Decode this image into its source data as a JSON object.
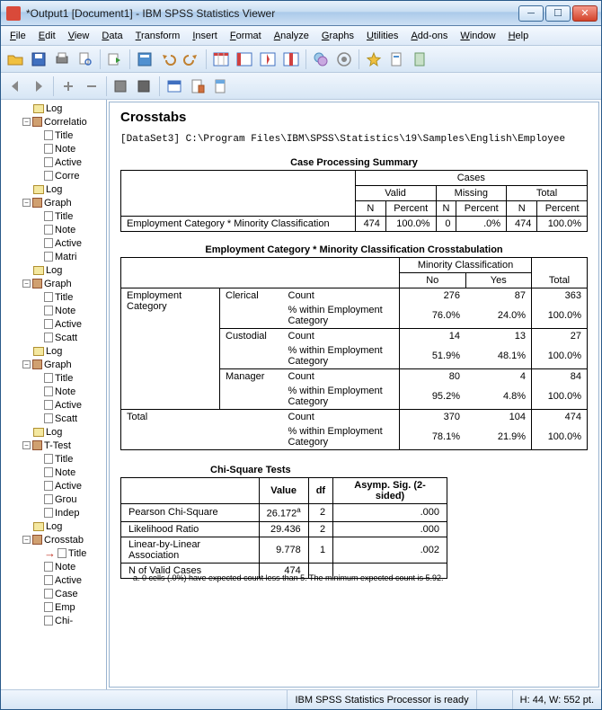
{
  "window": {
    "title": "*Output1 [Document1] - IBM SPSS Statistics Viewer"
  },
  "menu": [
    "File",
    "Edit",
    "View",
    "Data",
    "Transform",
    "Insert",
    "Format",
    "Analyze",
    "Graphs",
    "Utilities",
    "Add-ons",
    "Window",
    "Help"
  ],
  "tree": [
    {
      "icon": "log",
      "label": "Log",
      "indent": 36
    },
    {
      "icon": "book",
      "label": "Correlatio",
      "indent": 24,
      "toggle": "-"
    },
    {
      "icon": "page",
      "label": "Title",
      "indent": 48
    },
    {
      "icon": "page",
      "label": "Note",
      "indent": 48
    },
    {
      "icon": "page",
      "label": "Active",
      "indent": 48
    },
    {
      "icon": "page",
      "label": "Corre",
      "indent": 48
    },
    {
      "icon": "log",
      "label": "Log",
      "indent": 36
    },
    {
      "icon": "book",
      "label": "Graph",
      "indent": 24,
      "toggle": "-"
    },
    {
      "icon": "page",
      "label": "Title",
      "indent": 48
    },
    {
      "icon": "page",
      "label": "Note",
      "indent": 48
    },
    {
      "icon": "page",
      "label": "Active",
      "indent": 48
    },
    {
      "icon": "page",
      "label": "Matri",
      "indent": 48
    },
    {
      "icon": "log",
      "label": "Log",
      "indent": 36
    },
    {
      "icon": "book",
      "label": "Graph",
      "indent": 24,
      "toggle": "-"
    },
    {
      "icon": "page",
      "label": "Title",
      "indent": 48
    },
    {
      "icon": "page",
      "label": "Note",
      "indent": 48
    },
    {
      "icon": "page",
      "label": "Active",
      "indent": 48
    },
    {
      "icon": "page",
      "label": "Scatt",
      "indent": 48
    },
    {
      "icon": "log",
      "label": "Log",
      "indent": 36
    },
    {
      "icon": "book",
      "label": "Graph",
      "indent": 24,
      "toggle": "-"
    },
    {
      "icon": "page",
      "label": "Title",
      "indent": 48
    },
    {
      "icon": "page",
      "label": "Note",
      "indent": 48
    },
    {
      "icon": "page",
      "label": "Active",
      "indent": 48
    },
    {
      "icon": "page",
      "label": "Scatt",
      "indent": 48
    },
    {
      "icon": "log",
      "label": "Log",
      "indent": 36
    },
    {
      "icon": "book",
      "label": "T-Test",
      "indent": 24,
      "toggle": "-"
    },
    {
      "icon": "page",
      "label": "Title",
      "indent": 48
    },
    {
      "icon": "page",
      "label": "Note",
      "indent": 48
    },
    {
      "icon": "page",
      "label": "Active",
      "indent": 48
    },
    {
      "icon": "page",
      "label": "Grou",
      "indent": 48
    },
    {
      "icon": "page",
      "label": "Indep",
      "indent": 48
    },
    {
      "icon": "log",
      "label": "Log",
      "indent": 36
    },
    {
      "icon": "book",
      "label": "Crosstab",
      "indent": 24,
      "toggle": "-"
    },
    {
      "icon": "page",
      "label": "Title",
      "indent": 48,
      "pointer": true
    },
    {
      "icon": "page",
      "label": "Note",
      "indent": 48
    },
    {
      "icon": "page",
      "label": "Active",
      "indent": 48
    },
    {
      "icon": "page",
      "label": "Case",
      "indent": 48
    },
    {
      "icon": "page",
      "label": "Emp",
      "indent": 48
    },
    {
      "icon": "page",
      "label": "Chi-",
      "indent": 48
    }
  ],
  "content": {
    "heading": "Crosstabs",
    "dataset_path": "[DataSet3] C:\\Program Files\\IBM\\SPSS\\Statistics\\19\\Samples\\English\\Employee",
    "case_summary": {
      "title": "Case Processing Summary",
      "top_header": "Cases",
      "groups": [
        "Valid",
        "Missing",
        "Total"
      ],
      "sub_headers": [
        "N",
        "Percent"
      ],
      "row_label": "Employment Category * Minority Classification",
      "valid_n": "474",
      "valid_pct": "100.0%",
      "missing_n": "0",
      "missing_pct": ".0%",
      "total_n": "474",
      "total_pct": "100.0%"
    },
    "crosstab": {
      "title": "Employment Category * Minority Classification Crosstabulation",
      "col_group": "Minority Classification",
      "cols": [
        "No",
        "Yes"
      ],
      "total_label": "Total",
      "row_var": "Employment Category",
      "count_label": "Count",
      "pct_label": "% within Employment Category",
      "rows": [
        {
          "label": "Clerical",
          "count": [
            "276",
            "87",
            "363"
          ],
          "pct": [
            "76.0%",
            "24.0%",
            "100.0%"
          ]
        },
        {
          "label": "Custodial",
          "count": [
            "14",
            "13",
            "27"
          ],
          "pct": [
            "51.9%",
            "48.1%",
            "100.0%"
          ]
        },
        {
          "label": "Manager",
          "count": [
            "80",
            "4",
            "84"
          ],
          "pct": [
            "95.2%",
            "4.8%",
            "100.0%"
          ]
        }
      ],
      "total_row": {
        "label": "Total",
        "count": [
          "370",
          "104",
          "474"
        ],
        "pct": [
          "78.1%",
          "21.9%",
          "100.0%"
        ]
      }
    },
    "chisq": {
      "title": "Chi-Square Tests",
      "headers": [
        "Value",
        "df",
        "Asymp. Sig. (2-sided)"
      ],
      "rows": [
        {
          "label": "Pearson Chi-Square",
          "value": "26.172",
          "sup": "a",
          "df": "2",
          "sig": ".000"
        },
        {
          "label": "Likelihood Ratio",
          "value": "29.436",
          "df": "2",
          "sig": ".000"
        },
        {
          "label": "Linear-by-Linear Association",
          "value": "9.778",
          "df": "1",
          "sig": ".002"
        },
        {
          "label": "N of Valid Cases",
          "value": "474",
          "df": "",
          "sig": ""
        }
      ],
      "footnote": "a. 0 cells (.0%) have expected count less than 5. The minimum expected count is 5.92."
    }
  },
  "status": {
    "processor": "IBM SPSS Statistics Processor is ready",
    "dims": "H: 44, W: 552 pt."
  }
}
